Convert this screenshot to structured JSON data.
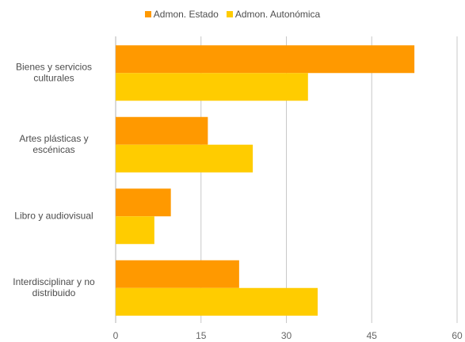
{
  "chart_data": {
    "type": "bar",
    "orientation": "horizontal",
    "categories": [
      [
        "Bienes y servicios",
        "culturales"
      ],
      [
        "Artes plásticas y",
        "escénicas"
      ],
      [
        "Libro y  audiovisual"
      ],
      [
        "Interdisciplinar y no",
        "distribuido"
      ]
    ],
    "series": [
      {
        "name": "Admon. Estado",
        "color": "#FF9900",
        "values": [
          52.5,
          16.2,
          9.7,
          21.7
        ]
      },
      {
        "name": "Admon. Autonómica",
        "color": "#FFCC00",
        "values": [
          33.8,
          24.1,
          6.8,
          35.5
        ]
      }
    ],
    "xticks": [
      0,
      15,
      30,
      45,
      60
    ],
    "xlim": [
      0,
      60
    ],
    "grid": true,
    "legend_position": "top-center"
  }
}
